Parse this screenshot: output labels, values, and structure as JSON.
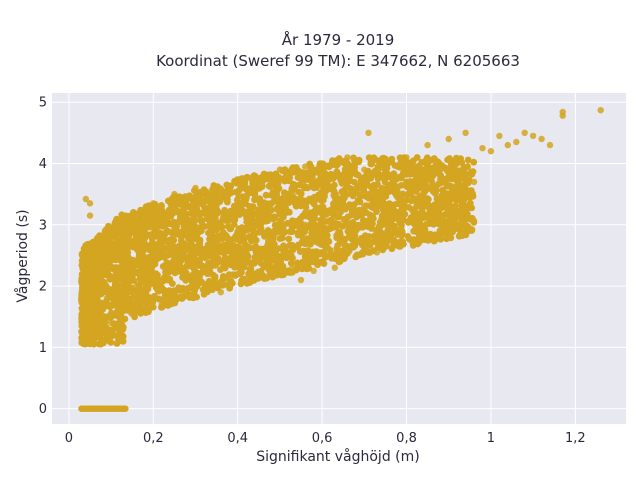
{
  "chart_data": {
    "type": "scatter",
    "title": "År 1979 - 2019",
    "subtitle": "Koordinat (Sweref 99 TM): E 347662, N 6205663",
    "xlabel": "Signifikant våghöjd (m)",
    "ylabel": "Vågperiod (s)",
    "xlim": [
      -0.04,
      1.32
    ],
    "ylim": [
      -0.25,
      5.15
    ],
    "xticks": [
      0,
      0.2,
      0.4,
      0.6,
      0.8,
      1.0,
      1.2
    ],
    "xtick_labels": [
      "0",
      "0,2",
      "0,4",
      "0,6",
      "0,8",
      "1",
      "1,2"
    ],
    "yticks": [
      0,
      1,
      2,
      3,
      4,
      5
    ],
    "ytick_labels": [
      "0",
      "1",
      "2",
      "3",
      "4",
      "5"
    ],
    "grid": true,
    "marker_color": "#d4a520",
    "background_color": "#e8e8f0",
    "series": [
      {
        "name": "",
        "points": [
          [
            0.03,
            0.0
          ],
          [
            0.05,
            0.0
          ],
          [
            0.07,
            0.0
          ],
          [
            0.09,
            0.0
          ],
          [
            0.11,
            0.0
          ],
          [
            0.13,
            0.0
          ],
          [
            0.04,
            1.5
          ],
          [
            0.04,
            3.42
          ],
          [
            0.05,
            3.15
          ],
          [
            0.05,
            3.35
          ],
          [
            0.03,
            1.35
          ],
          [
            0.06,
            1.2
          ],
          [
            0.06,
            2.5
          ],
          [
            0.08,
            1.1
          ],
          [
            0.08,
            2.2
          ],
          [
            0.09,
            1.8
          ],
          [
            0.1,
            1.4
          ],
          [
            0.1,
            2.6
          ],
          [
            0.12,
            1.15
          ],
          [
            0.12,
            2.9
          ],
          [
            0.14,
            1.6
          ],
          [
            0.14,
            3.05
          ],
          [
            0.16,
            2.0
          ],
          [
            0.16,
            3.1
          ],
          [
            0.18,
            1.6
          ],
          [
            0.18,
            2.4
          ],
          [
            0.2,
            2.7
          ],
          [
            0.2,
            3.35
          ],
          [
            0.22,
            1.7
          ],
          [
            0.22,
            3.2
          ],
          [
            0.25,
            2.3
          ],
          [
            0.25,
            3.5
          ],
          [
            0.28,
            1.9
          ],
          [
            0.28,
            3.3
          ],
          [
            0.3,
            2.8
          ],
          [
            0.3,
            3.6
          ],
          [
            0.33,
            2.2
          ],
          [
            0.33,
            3.2
          ],
          [
            0.36,
            1.9
          ],
          [
            0.36,
            3.5
          ],
          [
            0.4,
            2.9
          ],
          [
            0.4,
            3.7
          ],
          [
            0.43,
            2.2
          ],
          [
            0.43,
            3.3
          ],
          [
            0.46,
            2.5
          ],
          [
            0.46,
            3.8
          ],
          [
            0.5,
            3.2
          ],
          [
            0.5,
            3.9
          ],
          [
            0.53,
            2.3
          ],
          [
            0.53,
            3.5
          ],
          [
            0.56,
            3.0
          ],
          [
            0.56,
            3.95
          ],
          [
            0.6,
            3.3
          ],
          [
            0.6,
            4.0
          ],
          [
            0.63,
            3.1
          ],
          [
            0.66,
            3.6
          ],
          [
            0.66,
            4.1
          ],
          [
            0.7,
            3.3
          ],
          [
            0.7,
            3.9
          ],
          [
            0.73,
            2.55
          ],
          [
            0.74,
            4.05
          ],
          [
            0.76,
            3.6
          ],
          [
            0.8,
            3.7
          ],
          [
            0.8,
            4.1
          ],
          [
            0.84,
            3.8
          ],
          [
            0.85,
            4.3
          ],
          [
            0.88,
            3.9
          ],
          [
            0.9,
            4.4
          ],
          [
            0.92,
            4.0
          ],
          [
            0.94,
            4.5
          ],
          [
            0.96,
            3.7
          ],
          [
            0.98,
            4.25
          ],
          [
            1.0,
            4.2
          ],
          [
            1.02,
            4.45
          ],
          [
            1.04,
            4.3
          ],
          [
            1.06,
            4.35
          ],
          [
            1.08,
            4.5
          ],
          [
            1.1,
            4.45
          ],
          [
            1.12,
            4.4
          ],
          [
            1.14,
            4.3
          ],
          [
            1.17,
            4.78
          ],
          [
            1.17,
            4.84
          ],
          [
            1.26,
            4.87
          ],
          [
            0.71,
            4.5
          ],
          [
            0.63,
            2.3
          ],
          [
            0.58,
            2.25
          ],
          [
            0.55,
            2.1
          ],
          [
            0.22,
            2.75
          ]
        ]
      }
    ]
  }
}
